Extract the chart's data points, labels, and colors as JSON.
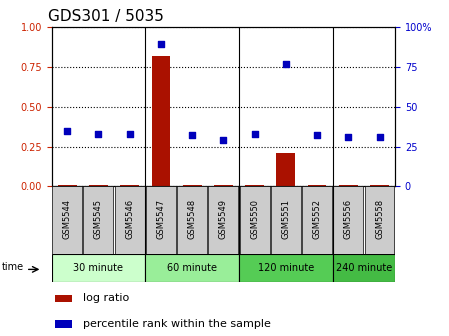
{
  "title": "GDS301 / 5035",
  "samples": [
    "GSM5544",
    "GSM5545",
    "GSM5546",
    "GSM5547",
    "GSM5548",
    "GSM5549",
    "GSM5550",
    "GSM5551",
    "GSM5552",
    "GSM5556",
    "GSM5558"
  ],
  "log_ratio": [
    0.01,
    0.01,
    0.01,
    0.82,
    0.01,
    0.01,
    0.01,
    0.21,
    0.01,
    0.01,
    0.01
  ],
  "percentile_rank": [
    0.35,
    0.33,
    0.33,
    0.89,
    0.32,
    0.29,
    0.33,
    0.77,
    0.32,
    0.31,
    0.31
  ],
  "time_groups": [
    {
      "label": "30 minute",
      "start": 0,
      "end": 3,
      "color": "#ccffcc"
    },
    {
      "label": "60 minute",
      "start": 3,
      "end": 6,
      "color": "#99ee99"
    },
    {
      "label": "120 minute",
      "start": 6,
      "end": 9,
      "color": "#55cc55"
    },
    {
      "label": "240 minute",
      "start": 9,
      "end": 11,
      "color": "#44bb44"
    }
  ],
  "left_yticks": [
    0,
    0.25,
    0.5,
    0.75,
    1.0
  ],
  "right_yticks": [
    0,
    25,
    50,
    75,
    100
  ],
  "left_ylabel_color": "#cc2200",
  "right_ylabel_color": "#0000cc",
  "bar_color": "#aa1100",
  "dot_color": "#0000bb",
  "bg_color": "#ffffff",
  "sample_box_color": "#cccccc",
  "legend_log_color": "#aa1100",
  "legend_dot_color": "#0000bb",
  "tick_fontsize": 7,
  "sample_fontsize": 6,
  "title_fontsize": 11
}
